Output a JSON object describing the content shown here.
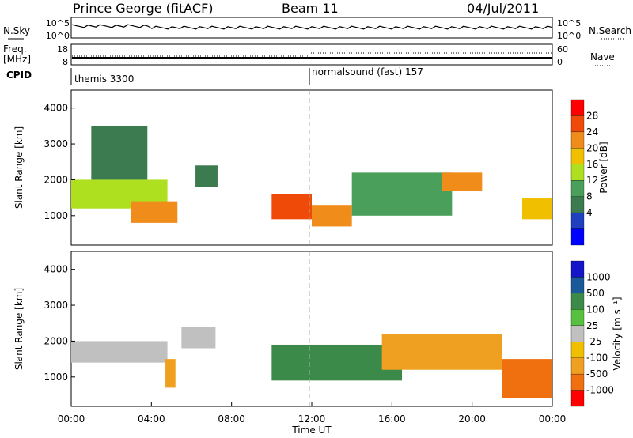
{
  "header": {
    "station": "Prince George (fitACF)",
    "beam": "Beam 11",
    "date": "04/Jul/2011"
  },
  "panels": {
    "nsky": {
      "label": "N.Sky",
      "ticks": [
        "10^5",
        "10^0"
      ],
      "right_label": "N.Search",
      "right_ticks": [
        "10^5",
        "10^0"
      ]
    },
    "freq": {
      "label_line1": "Freq.",
      "label_line2": "[MHz]",
      "ticks": [
        "18",
        "8"
      ],
      "right_label": "Nave",
      "right_ticks": [
        "60",
        "0"
      ]
    },
    "cpid": {
      "label": "CPID",
      "segments": [
        "themis 3300",
        "normalsound (fast) 157"
      ]
    }
  },
  "chart_data": [
    {
      "type": "heatmap",
      "panel": "power",
      "ylabel": "Slant Range [km]",
      "xlabel": "",
      "xlim": [
        "00:00",
        "24:00"
      ],
      "ylim": [
        180,
        4500
      ],
      "yticks": [
        "1000",
        "2000",
        "3000",
        "4000"
      ],
      "colorbar": {
        "label": "Power [dB]",
        "ticks": [
          "28",
          "24",
          "20",
          "16",
          "12",
          "8",
          "4"
        ],
        "colors": [
          "#0000ff",
          "#2040c0",
          "#3c7a50",
          "#4aa05a",
          "#aee020",
          "#f0c000",
          "#f08c1a",
          "#f04a08",
          "#ff0000"
        ]
      },
      "regions": [
        {
          "t_start_h": 0.0,
          "t_end_h": 4.8,
          "range_km": [
            1200,
            2000
          ],
          "value_db": 16
        },
        {
          "t_start_h": 3.0,
          "t_end_h": 5.3,
          "range_km": [
            800,
            1400
          ],
          "value_db": 26
        },
        {
          "t_start_h": 1.0,
          "t_end_h": 3.8,
          "range_km": [
            2000,
            3500
          ],
          "value_db": 8
        },
        {
          "t_start_h": 6.2,
          "t_end_h": 7.3,
          "range_km": [
            1800,
            2400
          ],
          "value_db": 8
        },
        {
          "t_start_h": 10.0,
          "t_end_h": 12.0,
          "range_km": [
            900,
            1600
          ],
          "value_db": 28
        },
        {
          "t_start_h": 12.0,
          "t_end_h": 14.0,
          "range_km": [
            700,
            1300
          ],
          "value_db": 24
        },
        {
          "t_start_h": 14.0,
          "t_end_h": 19.0,
          "range_km": [
            1000,
            2200
          ],
          "value_db": 12
        },
        {
          "t_start_h": 18.5,
          "t_end_h": 20.5,
          "range_km": [
            1700,
            2200
          ],
          "value_db": 24
        },
        {
          "t_start_h": 22.5,
          "t_end_h": 24.0,
          "range_km": [
            900,
            1500
          ],
          "value_db": 22
        }
      ]
    },
    {
      "type": "heatmap",
      "panel": "velocity",
      "ylabel": "Slant Range [km]",
      "xlabel": "Time UT",
      "xlim": [
        "00:00",
        "24:00"
      ],
      "ylim": [
        180,
        4500
      ],
      "yticks": [
        "1000",
        "2000",
        "3000",
        "4000"
      ],
      "xticks": [
        "00:00",
        "04:00",
        "08:00",
        "12:00",
        "16:00",
        "20:00",
        "00:00"
      ],
      "colorbar": {
        "label": "Velocity [m s⁻¹]",
        "ticks": [
          "1000",
          "500",
          "100",
          "25",
          "-25",
          "-100",
          "-500",
          "-1000"
        ],
        "colors": [
          "#1414c8",
          "#1a5a9a",
          "#3c8a4a",
          "#58c040",
          "#c0c0c0",
          "#f0c000",
          "#f0a020",
          "#f07010",
          "#ff0000"
        ]
      },
      "regions": [
        {
          "t_start_h": 0.0,
          "t_end_h": 4.8,
          "range_km": [
            1400,
            2000
          ],
          "value_ms": 0
        },
        {
          "t_start_h": 4.7,
          "t_end_h": 5.2,
          "range_km": [
            700,
            1500
          ],
          "value_ms": -300
        },
        {
          "t_start_h": 5.5,
          "t_end_h": 7.2,
          "range_km": [
            1800,
            2400
          ],
          "value_ms": 0
        },
        {
          "t_start_h": 10.0,
          "t_end_h": 16.5,
          "range_km": [
            900,
            1900
          ],
          "value_ms": 150
        },
        {
          "t_start_h": 15.5,
          "t_end_h": 21.5,
          "range_km": [
            1200,
            2200
          ],
          "value_ms": -200
        },
        {
          "t_start_h": 21.5,
          "t_end_h": 24.0,
          "range_km": [
            400,
            1500
          ],
          "value_ms": -600
        }
      ]
    }
  ]
}
